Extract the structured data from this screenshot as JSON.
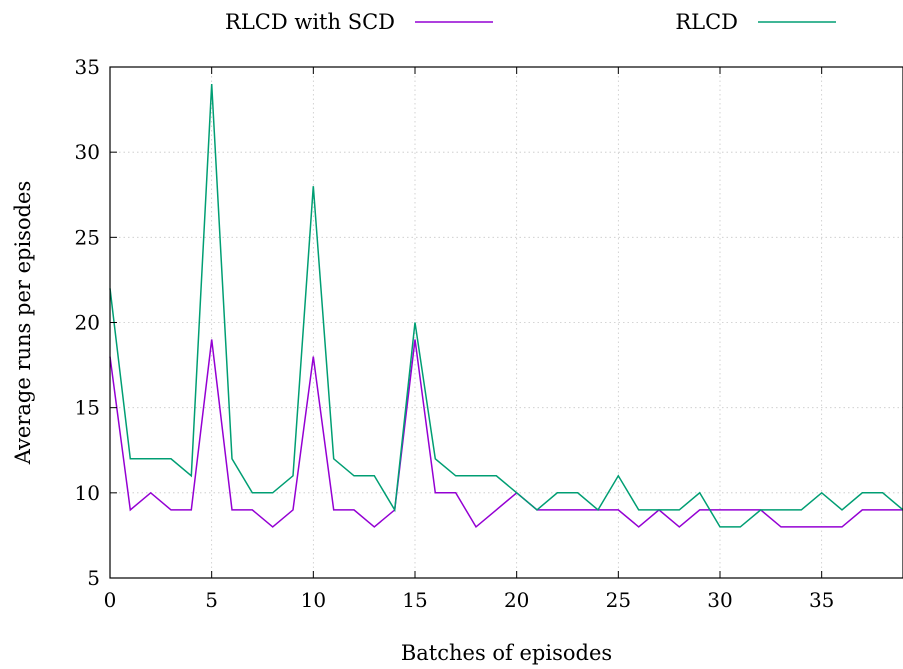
{
  "chart_data": {
    "type": "line",
    "xlabel": "Batches of episodes",
    "ylabel": "Average runs per episodes",
    "xlim": [
      0,
      39
    ],
    "ylim": [
      5,
      35
    ],
    "xticks": [
      "0",
      "5",
      "10",
      "15",
      "20",
      "25",
      "30",
      "35"
    ],
    "yticks": [
      "5",
      "10",
      "15",
      "20",
      "25",
      "30",
      "35"
    ],
    "grid": true,
    "legend_position": "top (outside plot)",
    "x": [
      0,
      1,
      2,
      3,
      4,
      5,
      6,
      7,
      8,
      9,
      10,
      11,
      12,
      13,
      14,
      15,
      16,
      17,
      18,
      19,
      20,
      21,
      22,
      23,
      24,
      25,
      26,
      27,
      28,
      29,
      30,
      31,
      32,
      33,
      34,
      35,
      36,
      37,
      38,
      39
    ],
    "series": [
      {
        "name": "RLCD with SCD",
        "color": "#9400d3",
        "values": [
          18,
          9,
          10,
          9,
          9,
          19,
          9,
          9,
          8,
          9,
          18,
          9,
          9,
          8,
          9,
          19,
          10,
          10,
          8,
          9,
          10,
          9,
          9,
          9,
          9,
          9,
          8,
          9,
          8,
          9,
          9,
          9,
          9,
          8,
          8,
          8,
          8,
          9,
          9,
          9
        ]
      },
      {
        "name": "RLCD",
        "color": "#009e73",
        "values": [
          22,
          12,
          12,
          12,
          11,
          34,
          12,
          10,
          10,
          11,
          28,
          12,
          11,
          11,
          9,
          20,
          12,
          11,
          11,
          11,
          10,
          9,
          10,
          10,
          9,
          11,
          9,
          9,
          9,
          10,
          8,
          8,
          9,
          9,
          9,
          10,
          9,
          10,
          10,
          9
        ]
      }
    ]
  }
}
